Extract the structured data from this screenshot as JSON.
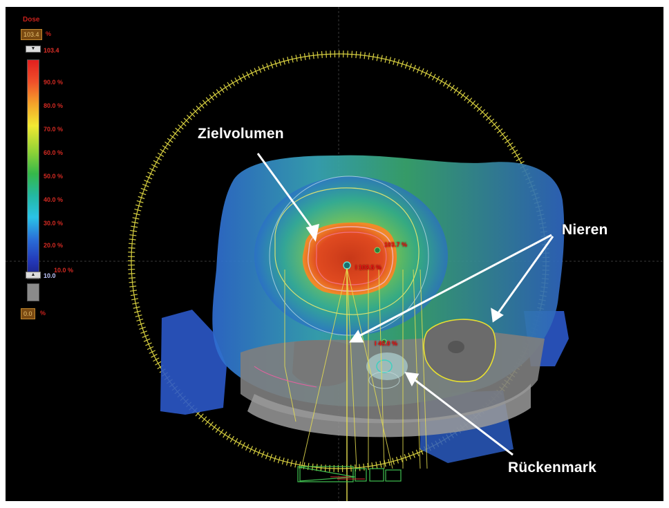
{
  "legend": {
    "title": "Dose",
    "max_box": "103.4",
    "max_unit": "%",
    "top_value": "103.4",
    "ticks": [
      "90.0 %",
      "80.0 %",
      "70.0 %",
      "60.0 %",
      "50.0 %",
      "40.0 %",
      "30.0 %",
      "20.0 %",
      "10.0 %"
    ],
    "low_value": "10.0",
    "min_box": "0.0",
    "min_unit": "%"
  },
  "annotations": {
    "target": "Zielvolumen",
    "kidneys": "Nieren",
    "spinal_cord": "Rückenmark"
  },
  "dose_labels": {
    "max_point": "103.7 %",
    "isocenter": "I 103.5 %",
    "spine": "I 40.0 %"
  }
}
